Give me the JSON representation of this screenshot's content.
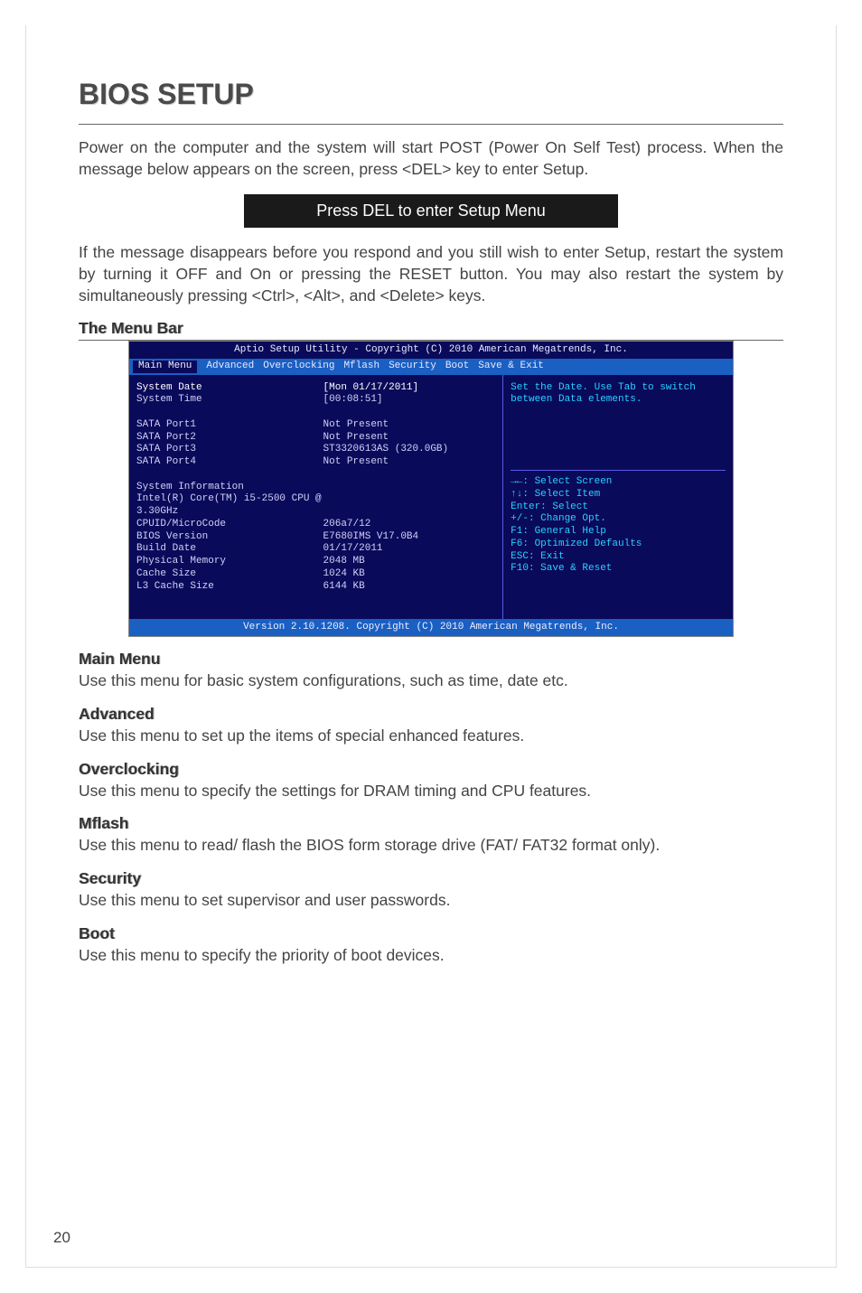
{
  "title": "BIOS SETUP",
  "intro_para_1": "Power on the computer and the system will start POST (Power On Self Test) process. When the message below appears on the screen, press <DEL> key to enter Setup.",
  "press_del": "Press DEL to enter Setup Menu",
  "intro_para_2": "If the message disappears before you respond and you still wish to enter Setup, restart the system by turning it OFF and On or pressing the RESET button. You may also restart the system by simultaneously pressing <Ctrl>, <Alt>, and <Delete> keys.",
  "menu_bar_label": "The Menu Bar",
  "page_number": "20",
  "bios": {
    "title": "Aptio Setup Utility - Copyright (C) 2010 American Megatrends, Inc.",
    "tabs": [
      "Main Menu",
      "Advanced",
      "Overclocking",
      "Mflash",
      "Security",
      "Boot",
      "Save & Exit"
    ],
    "active_tab": 0,
    "left_rows": [
      {
        "k": "System Date",
        "v": "[Mon 01/17/2011]",
        "hi": true
      },
      {
        "k": "System Time",
        "v": "[00:08:51]",
        "hi": false
      },
      {
        "gap": true
      },
      {
        "k": "SATA Port1",
        "v": "Not Present"
      },
      {
        "k": "SATA Port2",
        "v": "Not Present"
      },
      {
        "k": "SATA Port3",
        "v": "ST3320613AS (320.0GB)"
      },
      {
        "k": "SATA Port4",
        "v": "Not Present"
      },
      {
        "gap": true
      },
      {
        "k": "System Information",
        "v": ""
      },
      {
        "k": "Intel(R) Core(TM) i5-2500 CPU @ 3.30GHz",
        "v": ""
      },
      {
        "k": "CPUID/MicroCode",
        "v": "206a7/12"
      },
      {
        "k": "BIOS Version",
        "v": "E7680IMS V17.0B4"
      },
      {
        "k": "Build Date",
        "v": "01/17/2011"
      },
      {
        "k": "Physical Memory",
        "v": "2048 MB"
      },
      {
        "k": "Cache Size",
        "v": "1024 KB"
      },
      {
        "k": "L3 Cache Size",
        "v": "6144 KB"
      }
    ],
    "help_text": "Set the Date. Use Tab to switch between Data elements.",
    "nav_help": [
      "→←: Select Screen",
      "↑↓: Select Item",
      "Enter: Select",
      "+/-: Change Opt.",
      "F1: General Help",
      "F6: Optimized Defaults",
      "ESC: Exit",
      "F10: Save & Reset"
    ],
    "footer": "Version 2.10.1208. Copyright (C) 2010 American Megatrends, Inc."
  },
  "sections": [
    {
      "label": "Main Menu",
      "desc": "Use this menu for basic system configurations, such as time, date etc."
    },
    {
      "label": "Advanced",
      "desc": "Use this menu to set up the items of special enhanced features."
    },
    {
      "label": "Overclocking",
      "desc": "Use this menu to specify the settings for DRAM timing and CPU features."
    },
    {
      "label": "Mflash",
      "desc": "Use this menu to read/ flash the BIOS form storage drive (FAT/ FAT32 format only)."
    },
    {
      "label": "Security",
      "desc": "Use this menu to set supervisor and user passwords."
    },
    {
      "label": "Boot",
      "desc": "Use this menu to specify the priority of boot devices."
    }
  ]
}
